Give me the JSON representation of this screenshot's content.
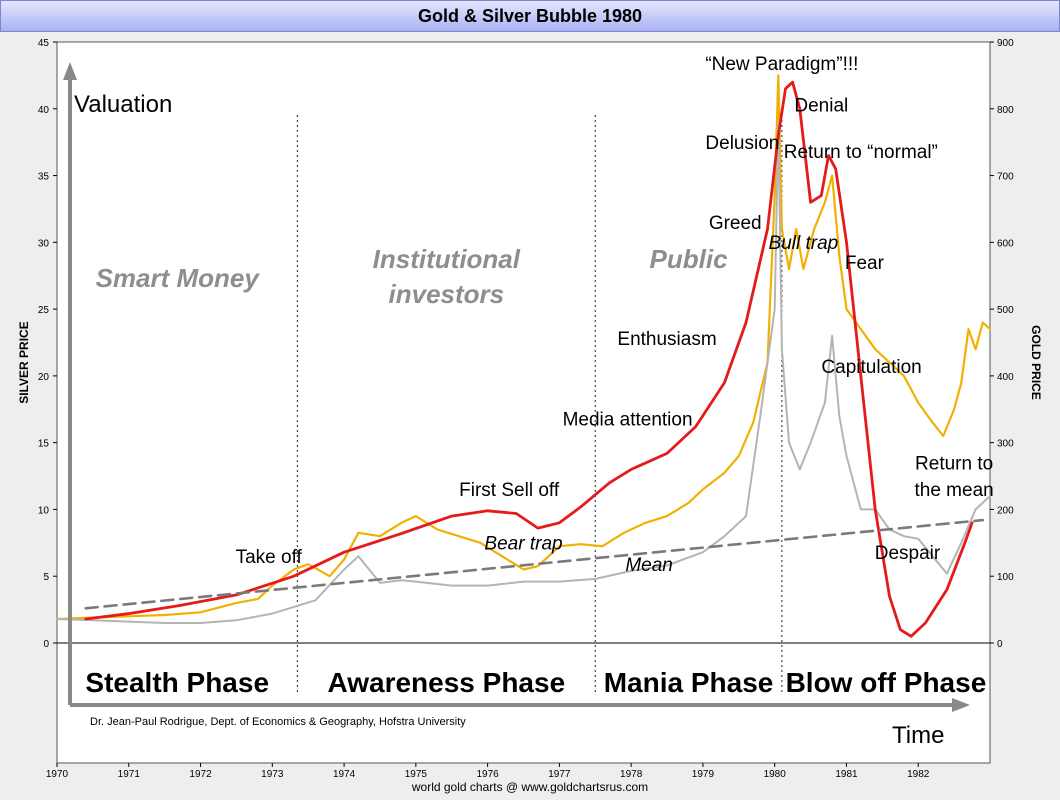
{
  "chart_data": {
    "type": "line",
    "title": "Gold & Silver Bubble 1980",
    "ylabel": "SILVER PRICE",
    "y2label": "GOLD PRICE",
    "ylim": [
      0,
      45
    ],
    "y2lim": [
      0,
      900
    ],
    "xlim": [
      1970,
      1983
    ],
    "x_ticks": [
      "1970",
      "1971",
      "1972",
      "1973",
      "1974",
      "1975",
      "1976",
      "1977",
      "1978",
      "1979",
      "1980",
      "1981",
      "1982"
    ],
    "y_ticks": [
      "0",
      "5",
      "10",
      "15",
      "20",
      "25",
      "30",
      "35",
      "40",
      "45"
    ],
    "y2_ticks": [
      "0",
      "100",
      "200",
      "300",
      "400",
      "500",
      "600",
      "700",
      "800",
      "900"
    ],
    "series": [
      {
        "key": "gold",
        "color": "#f2b000",
        "x": [
          1970.0,
          1970.5,
          1971.0,
          1971.5,
          1972.0,
          1972.5,
          1972.8,
          1973.0,
          1973.3,
          1973.5,
          1973.8,
          1974.0,
          1974.2,
          1974.5,
          1974.8,
          1975.0,
          1975.3,
          1975.6,
          1975.9,
          1976.2,
          1976.5,
          1976.7,
          1977.0,
          1977.3,
          1977.6,
          1977.9,
          1978.2,
          1978.5,
          1978.8,
          1979.0,
          1979.3,
          1979.5,
          1979.7,
          1979.9,
          1980.0,
          1980.05,
          1980.1,
          1980.2,
          1980.3,
          1980.4,
          1980.55,
          1980.7,
          1980.8,
          1980.9,
          1981.0,
          1981.2,
          1981.4,
          1981.6,
          1981.8,
          1982.0,
          1982.2,
          1982.35,
          1982.5,
          1982.6,
          1982.7,
          1982.8,
          1982.9,
          1983.0
        ],
        "values": [
          36,
          38,
          40,
          42,
          46,
          60,
          66,
          86,
          110,
          118,
          100,
          125,
          165,
          160,
          180,
          190,
          170,
          160,
          150,
          130,
          110,
          115,
          145,
          148,
          145,
          165,
          180,
          190,
          210,
          230,
          255,
          280,
          330,
          420,
          670,
          850,
          620,
          560,
          620,
          560,
          620,
          660,
          700,
          580,
          500,
          470,
          440,
          420,
          400,
          360,
          330,
          310,
          350,
          390,
          470,
          440,
          480,
          470
        ]
      },
      {
        "key": "silver",
        "color": "#b4b4b4",
        "x": [
          1970.0,
          1970.5,
          1971.0,
          1971.5,
          1972.0,
          1972.5,
          1973.0,
          1973.3,
          1973.6,
          1974.0,
          1974.2,
          1974.5,
          1974.8,
          1975.0,
          1975.5,
          1976.0,
          1976.5,
          1977.0,
          1977.5,
          1978.0,
          1978.5,
          1979.0,
          1979.3,
          1979.6,
          1979.8,
          1980.0,
          1980.05,
          1980.1,
          1980.2,
          1980.35,
          1980.5,
          1980.7,
          1980.8,
          1980.9,
          1981.0,
          1981.2,
          1981.4,
          1981.6,
          1981.8,
          1982.0,
          1982.2,
          1982.4,
          1982.6,
          1982.8,
          1983.0
        ],
        "values": [
          1.8,
          1.7,
          1.6,
          1.5,
          1.5,
          1.7,
          2.2,
          2.7,
          3.2,
          5.5,
          6.5,
          4.5,
          4.7,
          4.6,
          4.3,
          4.3,
          4.6,
          4.6,
          4.8,
          5.4,
          5.8,
          6.8,
          8.0,
          9.5,
          17,
          25,
          39,
          22,
          15,
          13,
          15,
          18,
          23,
          17,
          14,
          10,
          10,
          8.5,
          8,
          7.8,
          6.5,
          5.2,
          7.5,
          10,
          11
        ]
      },
      {
        "key": "valuation",
        "color": "#e51a1a",
        "x": [
          1970.4,
          1971.0,
          1971.7,
          1972.5,
          1973.3,
          1974.0,
          1974.8,
          1975.5,
          1976.0,
          1976.4,
          1976.7,
          1977.0,
          1977.3,
          1977.7,
          1978.0,
          1978.5,
          1978.9,
          1979.3,
          1979.6,
          1979.9,
          1980.05,
          1980.15,
          1980.25,
          1980.35,
          1980.5,
          1980.65,
          1980.75,
          1980.85,
          1981.0,
          1981.2,
          1981.4,
          1981.6,
          1981.75,
          1981.9,
          1982.1,
          1982.4,
          1982.65,
          1982.75
        ],
        "values": [
          1.8,
          2.2,
          2.8,
          3.6,
          5.0,
          6.8,
          8.2,
          9.5,
          9.9,
          9.7,
          8.6,
          9.0,
          10.2,
          12.0,
          13.0,
          14.2,
          16.2,
          19.5,
          24.0,
          31.0,
          38.0,
          41.5,
          42.0,
          40.0,
          33.0,
          33.5,
          36.5,
          35.5,
          30.0,
          20.0,
          10.0,
          3.5,
          1.0,
          0.5,
          1.5,
          4.0,
          7.5,
          9.0
        ]
      },
      {
        "key": "mean",
        "color": "#7a7a7a",
        "x": [
          1970.4,
          1982.9
        ],
        "values": [
          2.6,
          9.2
        ]
      }
    ],
    "phases": [
      {
        "label": "Stealth Phase",
        "group": "Smart Money",
        "start": 1970,
        "end": 1973.35
      },
      {
        "label": "Awareness Phase",
        "group": "Institutional investors",
        "start": 1973.35,
        "end": 1977.5
      },
      {
        "label": "Mania Phase",
        "group": "Public",
        "start": 1977.5,
        "end": 1980.1
      },
      {
        "label": "Blow off Phase",
        "group": "",
        "start": 1980.1,
        "end": 1983
      }
    ],
    "annotations": [
      {
        "text": "Take off",
        "x": 1972.95,
        "y": 6.0
      },
      {
        "text": "First Sell off",
        "x": 1976.3,
        "y": 11.0
      },
      {
        "text": "Bear trap",
        "x": 1976.5,
        "y": 7.0,
        "italic": true
      },
      {
        "text": "Mean",
        "x": 1978.25,
        "y": 5.4,
        "italic": true
      },
      {
        "text": "Media attention",
        "x": 1977.95,
        "y": 16.3
      },
      {
        "text": "Enthusiasm",
        "x": 1978.5,
        "y": 22.3
      },
      {
        "text": "Greed",
        "x": 1979.45,
        "y": 31.0
      },
      {
        "text": "Delusion",
        "x": 1979.55,
        "y": 37.0
      },
      {
        "text": "“New Paradigm”!!!",
        "x": 1980.1,
        "y": 42.9
      },
      {
        "text": "Denial",
        "x": 1980.65,
        "y": 39.8
      },
      {
        "text": "Return to “normal”",
        "x": 1981.2,
        "y": 36.3
      },
      {
        "text": "Bull trap",
        "x": 1980.4,
        "y": 29.5,
        "italic": true
      },
      {
        "text": "Fear",
        "x": 1981.25,
        "y": 28.0
      },
      {
        "text": "Capitulation",
        "x": 1981.35,
        "y": 20.2
      },
      {
        "text": "Return to",
        "x": 1982.5,
        "y": 13.0
      },
      {
        "text": "the mean",
        "x": 1982.5,
        "y": 11.0
      },
      {
        "text": "Despair",
        "x": 1981.85,
        "y": 6.3
      }
    ],
    "axis_label_y": "Valuation",
    "axis_label_x": "Time",
    "credit": "Dr. Jean-Paul Rodrigue, Dept. of Economics & Geography, Hofstra University"
  },
  "footer": "world gold charts @ www.goldchartsrus.com"
}
